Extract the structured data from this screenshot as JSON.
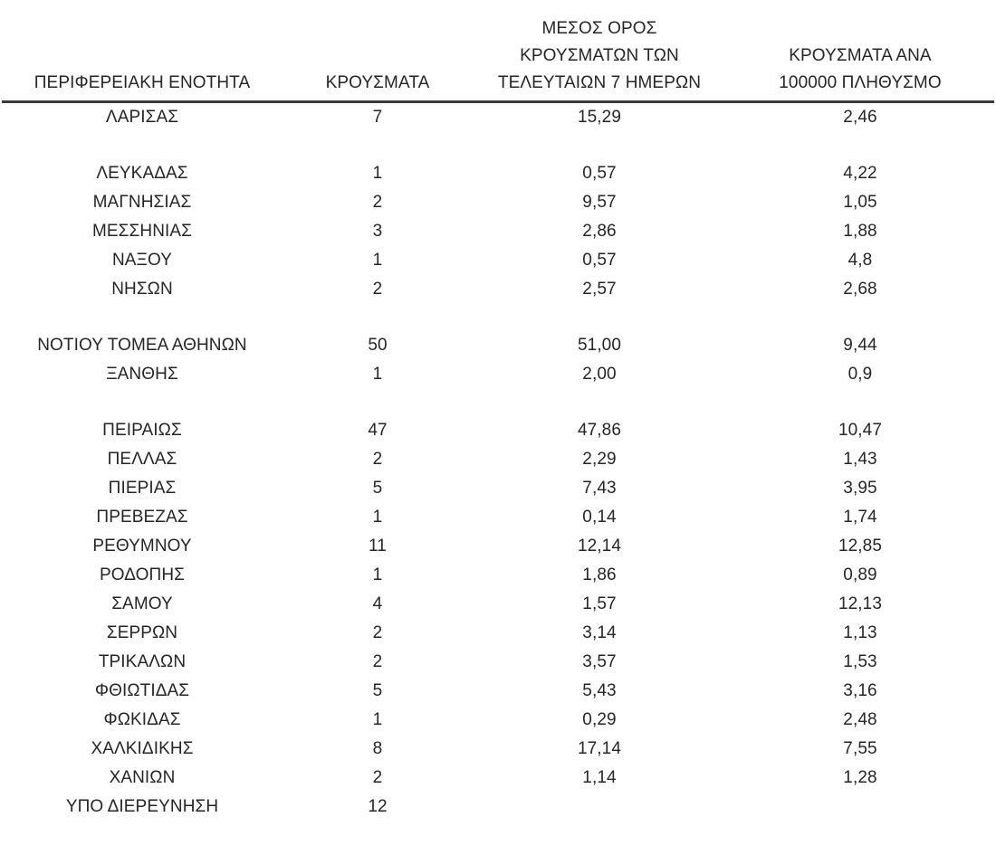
{
  "page": {
    "background_color": "#ffffff",
    "text_color": "#262626",
    "rule_color": "#3b3b3b"
  },
  "table": {
    "columns": [
      {
        "id": "region",
        "label": "ΠΕΡΙΦΕΡΕΙΑΚΗ ΕΝΟΤΗΤΑ",
        "lines": [
          "ΠΕΡΙΦΕΡΕΙΑΚΗ ΕΝΟΤΗΤΑ"
        ]
      },
      {
        "id": "cases",
        "label": "ΚΡΟΥΣΜΑΤΑ",
        "lines": [
          "ΚΡΟΥΣΜΑΤΑ"
        ]
      },
      {
        "id": "avg_7d",
        "label": "ΜΕΣΟΣ ΟΡΟΣ ΚΡΟΥΣΜΑΤΩΝ ΤΩΝ ΤΕΛΕΥΤΑΙΩΝ 7 ΗΜΕΡΩΝ",
        "lines": [
          "ΜΕΣΟΣ ΟΡΟΣ",
          "ΚΡΟΥΣΜΑΤΩΝ ΤΩΝ",
          "ΤΕΛΕΥΤΑΙΩΝ 7 ΗΜΕΡΩΝ"
        ]
      },
      {
        "id": "per_100k",
        "label": "ΚΡΟΥΣΜΑΤΑ ΑΝΑ 100000 ΠΛΗΘΥΣΜΟ",
        "lines": [
          "ΚΡΟΥΣΜΑΤΑ ΑΝΑ",
          "100000 ΠΛΗΘΥΣΜΟ"
        ]
      }
    ],
    "rows": [
      {
        "region": "ΛΑΡΙΣΑΣ",
        "cases": "7",
        "avg_7d": "15,29",
        "per_100k": "2,46",
        "gap_after": true
      },
      {
        "region": "ΛΕΥΚΑΔΑΣ",
        "cases": "1",
        "avg_7d": "0,57",
        "per_100k": "4,22"
      },
      {
        "region": "ΜΑΓΝΗΣΙΑΣ",
        "cases": "2",
        "avg_7d": "9,57",
        "per_100k": "1,05"
      },
      {
        "region": "ΜΕΣΣΗΝΙΑΣ",
        "cases": "3",
        "avg_7d": "2,86",
        "per_100k": "1,88"
      },
      {
        "region": "ΝΑΞΟΥ",
        "cases": "1",
        "avg_7d": "0,57",
        "per_100k": "4,8"
      },
      {
        "region": "ΝΗΣΩΝ",
        "cases": "2",
        "avg_7d": "2,57",
        "per_100k": "2,68",
        "gap_after": true
      },
      {
        "region": "ΝΟΤΙΟΥ ΤΟΜΕΑ ΑΘΗΝΩΝ",
        "cases": "50",
        "avg_7d": "51,00",
        "per_100k": "9,44"
      },
      {
        "region": "ΞΑΝΘΗΣ",
        "cases": "1",
        "avg_7d": "2,00",
        "per_100k": "0,9",
        "gap_after": true
      },
      {
        "region": "ΠΕΙΡΑΙΩΣ",
        "cases": "47",
        "avg_7d": "47,86",
        "per_100k": "10,47"
      },
      {
        "region": "ΠΕΛΛΑΣ",
        "cases": "2",
        "avg_7d": "2,29",
        "per_100k": "1,43"
      },
      {
        "region": "ΠΙΕΡΙΑΣ",
        "cases": "5",
        "avg_7d": "7,43",
        "per_100k": "3,95"
      },
      {
        "region": "ΠΡΕΒΕΖΑΣ",
        "cases": "1",
        "avg_7d": "0,14",
        "per_100k": "1,74"
      },
      {
        "region": "ΡΕΘΥΜΝΟΥ",
        "cases": "11",
        "avg_7d": "12,14",
        "per_100k": "12,85"
      },
      {
        "region": "ΡΟΔΟΠΗΣ",
        "cases": "1",
        "avg_7d": "1,86",
        "per_100k": "0,89"
      },
      {
        "region": "ΣΑΜΟΥ",
        "cases": "4",
        "avg_7d": "1,57",
        "per_100k": "12,13"
      },
      {
        "region": "ΣΕΡΡΩΝ",
        "cases": "2",
        "avg_7d": "3,14",
        "per_100k": "1,13"
      },
      {
        "region": "ΤΡΙΚΑΛΩΝ",
        "cases": "2",
        "avg_7d": "3,57",
        "per_100k": "1,53"
      },
      {
        "region": "ΦΘΙΩΤΙΔΑΣ",
        "cases": "5",
        "avg_7d": "5,43",
        "per_100k": "3,16"
      },
      {
        "region": "ΦΩΚΙΔΑΣ",
        "cases": "1",
        "avg_7d": "0,29",
        "per_100k": "2,48"
      },
      {
        "region": "ΧΑΛΚΙΔΙΚΗΣ",
        "cases": "8",
        "avg_7d": "17,14",
        "per_100k": "7,55"
      },
      {
        "region": "ΧΑΝΙΩΝ",
        "cases": "2",
        "avg_7d": "1,14",
        "per_100k": "1,28"
      },
      {
        "region": "ΥΠΟ ΔΙΕΡΕΥΝΗΣΗ",
        "cases": "12",
        "avg_7d": "",
        "per_100k": ""
      }
    ]
  }
}
